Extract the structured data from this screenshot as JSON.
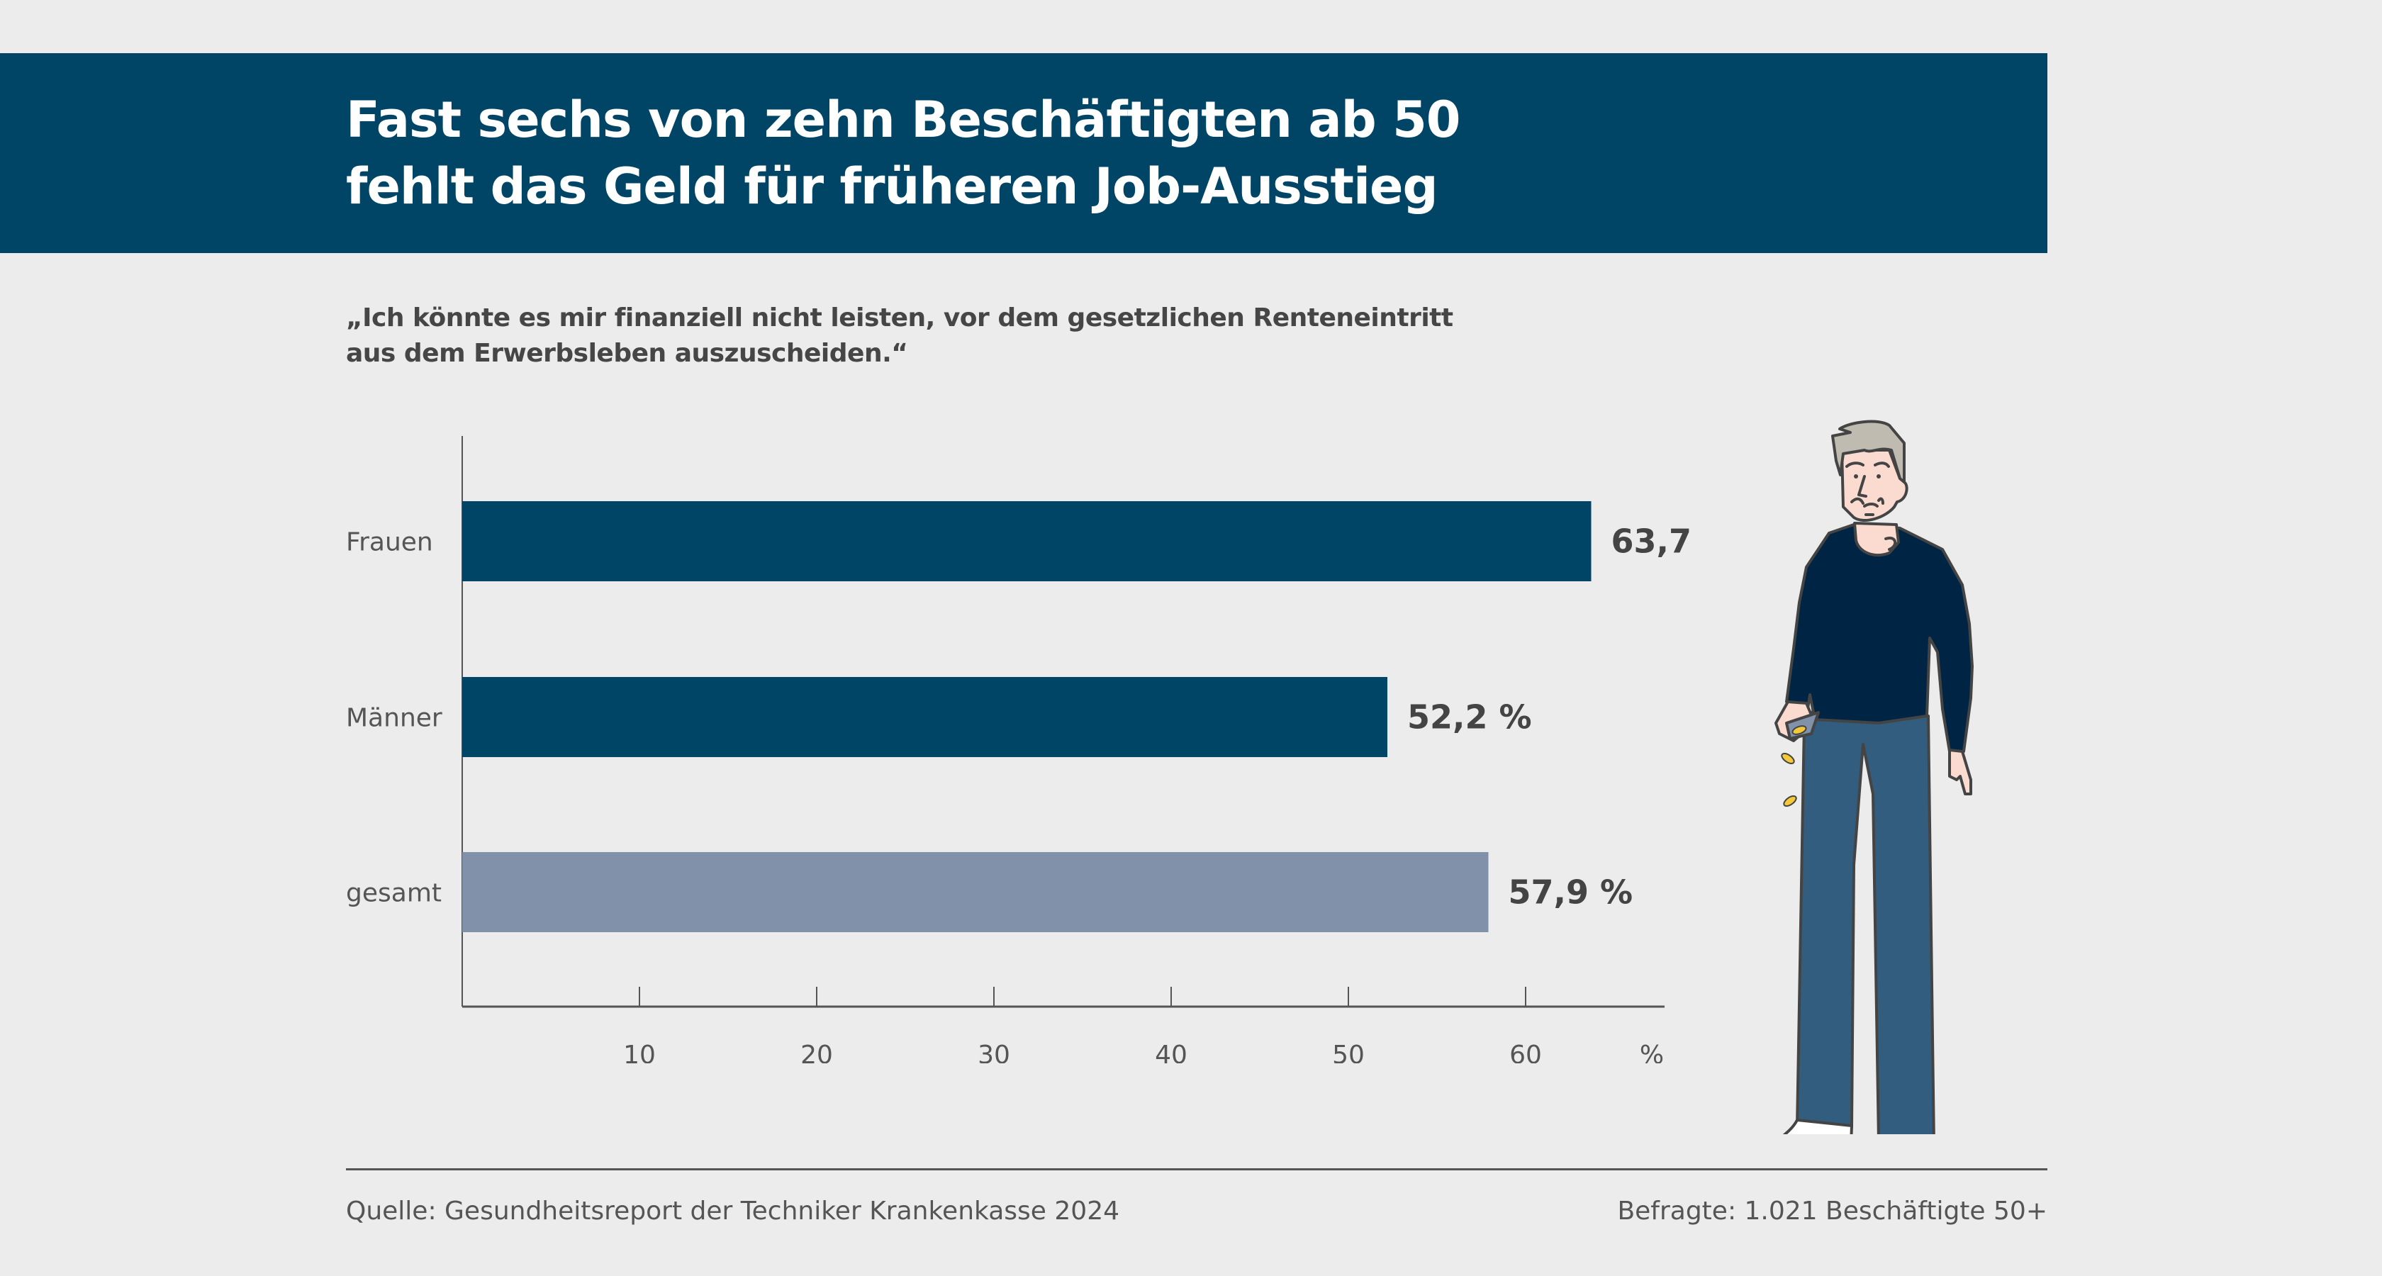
{
  "header": {
    "title_lines": [
      "Fast sechs von zehn Beschäftigten ab 50",
      "fehlt das Geld für früheren Job-Ausstieg"
    ],
    "subtitle_lines": [
      "„Ich könnte es mir finanziell nicht leisten, vor dem gesetzlichen Renteneintritt",
      "aus dem Erwerbsleben auszuscheiden.“"
    ]
  },
  "colors": {
    "brand": "#004466",
    "bar_primary": "#004466",
    "bar_total": "#8091a9",
    "text": "#444444",
    "background": "#ececec"
  },
  "chart_data": {
    "type": "bar",
    "orientation": "horizontal",
    "title": "Fast sechs von zehn Beschäftigten ab 50 fehlt das Geld für früheren Job-Ausstieg",
    "categories": [
      "Frauen",
      "Männer",
      "gesamt"
    ],
    "values": [
      63.7,
      52.2,
      57.9
    ],
    "value_labels": [
      "63,7 %",
      "52,2 %",
      "57,9 %"
    ],
    "bar_colors": [
      "#004466",
      "#004466",
      "#8091a9"
    ],
    "xlabel": "%",
    "ylabel": "",
    "xlim": [
      0,
      68
    ],
    "xticks": [
      10,
      20,
      30,
      40,
      50,
      60
    ],
    "xtick_labels": [
      "10",
      "20",
      "30",
      "40",
      "50",
      "60"
    ],
    "unit_label": "%",
    "grid": false,
    "legend": "none"
  },
  "illustration": {
    "icon": "man-pouring-coins-from-wallet-icon"
  },
  "footer": {
    "source": "Quelle: Gesundheitsreport der Techniker Krankenkasse 2024",
    "respondents": "Befragte: 1.021 Beschäftigte 50+"
  }
}
